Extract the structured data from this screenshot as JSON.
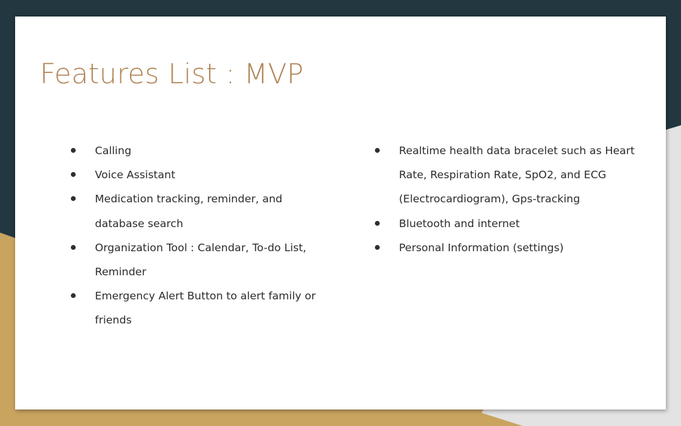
{
  "slide": {
    "title": "Features List : MVP",
    "colors": {
      "background_dark": "#223740",
      "background_gold": "#c9a45f",
      "background_gray": "#e3e3e3",
      "card": "#ffffff",
      "title": "#b08456",
      "text": "#2b2b2b"
    },
    "left_column": [
      "Calling",
      "Voice Assistant",
      "Medication tracking, reminder, and database search",
      "Organization Tool : Calendar, To-do List, Reminder",
      "Emergency Alert Button to alert family or friends"
    ],
    "right_column": [
      "Realtime health data bracelet such as Heart Rate, Respiration Rate, SpO2, and ECG (Electrocardiogram), Gps-tracking",
      "Bluetooth and internet",
      "Personal Information (settings)"
    ]
  }
}
